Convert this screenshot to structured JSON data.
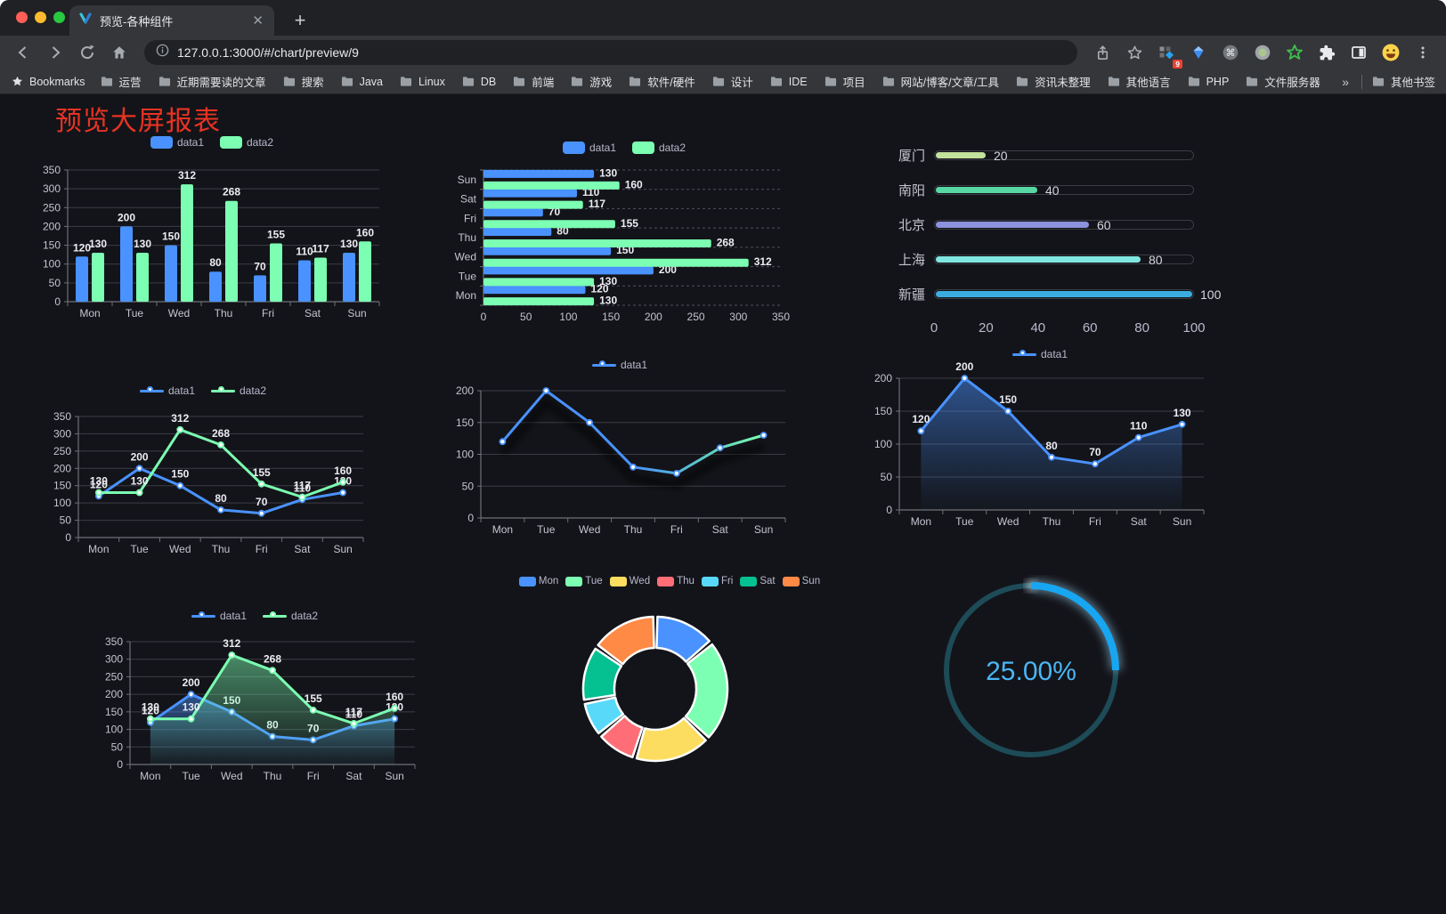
{
  "browser": {
    "tab_title": "预览-各种组件",
    "url": "127.0.0.1:3000/#/chart/preview/9",
    "extension_badge": "9",
    "bookmarks_label": "Bookmarks",
    "bookmark_items": [
      "运营",
      "近期需要读的文章",
      "搜索",
      "Java",
      "Linux",
      "DB",
      "前端",
      "游戏",
      "软件/硬件",
      "设计",
      "IDE",
      "项目",
      "网站/博客/文章/工具",
      "资讯未整理",
      "其他语言",
      "PHP",
      "文件服务器"
    ],
    "bookmarks_overflow": "»",
    "other_bookmarks": "其他书签"
  },
  "page": {
    "title": "预览大屏报表",
    "title_color": "#e73323",
    "background": "#131419"
  },
  "chart_data": [
    {
      "type": "bar",
      "orient": "vertical",
      "categories": [
        "Mon",
        "Tue",
        "Wed",
        "Thu",
        "Fri",
        "Sat",
        "Sun"
      ],
      "series": [
        {
          "name": "data1",
          "color": "#4992ff",
          "values": [
            120,
            200,
            150,
            80,
            70,
            110,
            130
          ]
        },
        {
          "name": "data2",
          "color": "#7cffb2",
          "values": [
            130,
            130,
            312,
            268,
            155,
            117,
            160
          ]
        }
      ],
      "ylim": [
        0,
        350
      ],
      "ystep": 50,
      "legend": true,
      "labels": true,
      "legend_marker": "rect",
      "grid": true
    },
    {
      "type": "bar",
      "orient": "horizontal",
      "categories": [
        "Mon",
        "Tue",
        "Wed",
        "Thu",
        "Fri",
        "Sat",
        "Sun"
      ],
      "series": [
        {
          "name": "data1",
          "color": "#4992ff",
          "values": [
            120,
            200,
            150,
            80,
            70,
            110,
            130
          ]
        },
        {
          "name": "data2",
          "color": "#7cffb2",
          "values": [
            130,
            130,
            312,
            268,
            155,
            117,
            160
          ]
        }
      ],
      "xlim": [
        0,
        350
      ],
      "xstep": 50,
      "legend": true,
      "labels": true,
      "legend_marker": "rect",
      "grid": true
    },
    {
      "type": "progress",
      "categories": [
        "厦门",
        "南阳",
        "北京",
        "上海",
        "新疆"
      ],
      "values": [
        20,
        40,
        60,
        80,
        100
      ],
      "colors": [
        "#c3e29b",
        "#57d8a3",
        "#8c92dd",
        "#7fe6e0",
        "#3aacdf"
      ],
      "max": 100,
      "ticks": [
        0,
        20,
        40,
        60,
        80,
        100
      ]
    },
    {
      "type": "line",
      "categories": [
        "Mon",
        "Tue",
        "Wed",
        "Thu",
        "Fri",
        "Sat",
        "Sun"
      ],
      "series": [
        {
          "name": "data1",
          "color": "#4992ff",
          "values": [
            120,
            200,
            150,
            80,
            70,
            110,
            130
          ]
        },
        {
          "name": "data2",
          "color": "#7cffb2",
          "values": [
            130,
            130,
            312,
            268,
            155,
            117,
            160
          ]
        }
      ],
      "ylim": [
        0,
        350
      ],
      "ystep": 50,
      "legend": true,
      "labels": true,
      "legend_marker": "line",
      "grid": true
    },
    {
      "type": "line",
      "categories": [
        "Mon",
        "Tue",
        "Wed",
        "Thu",
        "Fri",
        "Sat",
        "Sun"
      ],
      "series": [
        {
          "name": "data1",
          "color": "#4992ff",
          "gradient": [
            "#4992ff",
            "#7cffb2"
          ],
          "values": [
            120,
            200,
            150,
            80,
            70,
            110,
            130
          ]
        }
      ],
      "ylim": [
        0,
        200
      ],
      "ystep": 50,
      "legend": true,
      "labels": false,
      "shadow": true,
      "legend_marker": "line",
      "grid": true
    },
    {
      "type": "line",
      "categories": [
        "Mon",
        "Tue",
        "Wed",
        "Thu",
        "Fri",
        "Sat",
        "Sun"
      ],
      "series": [
        {
          "name": "data1",
          "color": "#4992ff",
          "area": true,
          "values": [
            120,
            200,
            150,
            80,
            70,
            110,
            130
          ]
        }
      ],
      "ylim": [
        0,
        200
      ],
      "ystep": 50,
      "legend": true,
      "labels": true,
      "legend_marker": "line",
      "grid": true
    },
    {
      "type": "line",
      "categories": [
        "Mon",
        "Tue",
        "Wed",
        "Thu",
        "Fri",
        "Sat",
        "Sun"
      ],
      "series": [
        {
          "name": "data1",
          "color": "#4992ff",
          "area": true,
          "values": [
            120,
            200,
            150,
            80,
            70,
            110,
            130
          ]
        },
        {
          "name": "data2",
          "color": "#7cffb2",
          "area": true,
          "values": [
            130,
            130,
            312,
            268,
            155,
            117,
            160
          ]
        }
      ],
      "ylim": [
        0,
        350
      ],
      "ystep": 50,
      "legend": true,
      "labels": true,
      "legend_marker": "line",
      "grid": true
    },
    {
      "type": "donut",
      "categories": [
        "Mon",
        "Tue",
        "Wed",
        "Thu",
        "Fri",
        "Sat",
        "Sun"
      ],
      "values": [
        120,
        200,
        150,
        80,
        70,
        110,
        130
      ],
      "colors": [
        "#4992ff",
        "#7cffb2",
        "#fddd60",
        "#ff6e76",
        "#58d9f9",
        "#05c091",
        "#ff8a45"
      ],
      "legend": true,
      "legend_marker": "rect"
    },
    {
      "type": "gauge",
      "value": 25,
      "max": 100,
      "display": "25.00%",
      "color": "#17a7f2",
      "track_color": "#1d4b57",
      "text_color": "#4ab5f5"
    }
  ]
}
